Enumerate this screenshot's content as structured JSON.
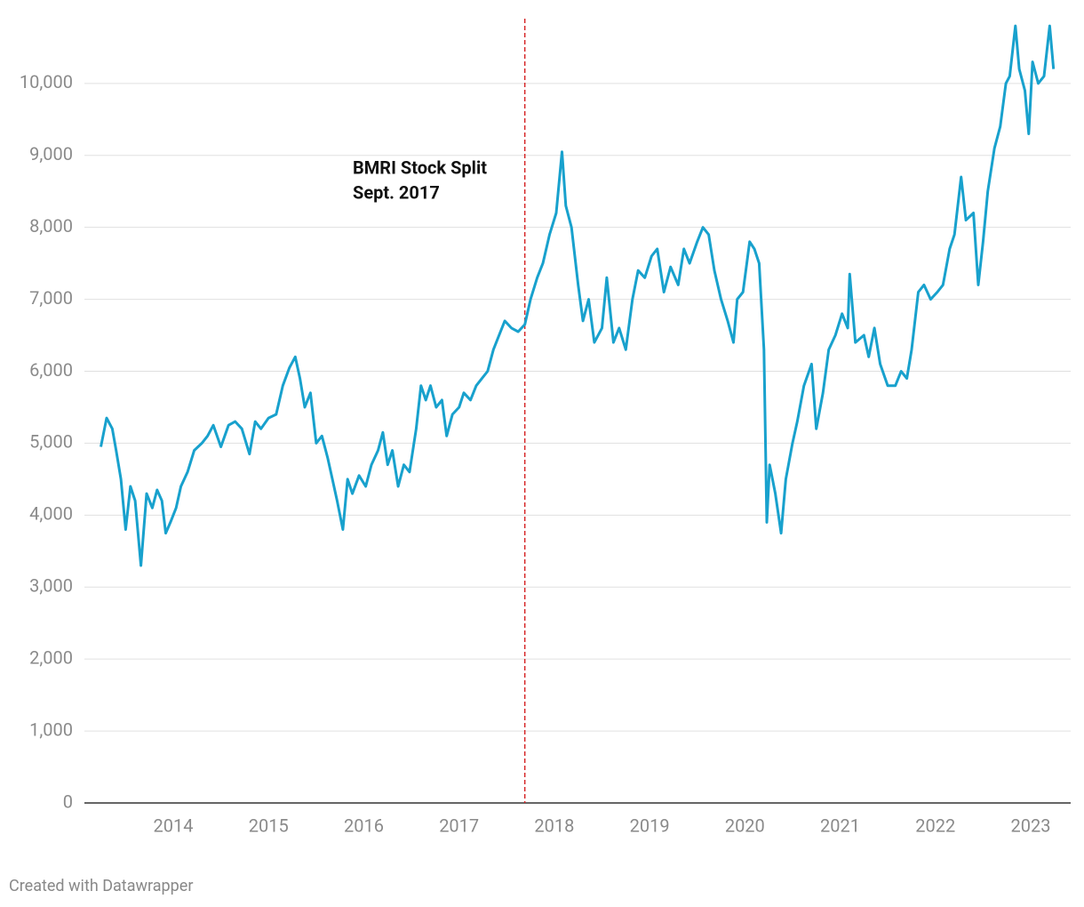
{
  "chart_data": {
    "type": "line",
    "x": [
      2013.24,
      2013.3,
      2013.36,
      2013.4,
      2013.45,
      2013.5,
      2013.55,
      2013.6,
      2013.66,
      2013.72,
      2013.78,
      2013.83,
      2013.88,
      2013.92,
      2013.97,
      2014.03,
      2014.08,
      2014.15,
      2014.22,
      2014.3,
      2014.36,
      2014.42,
      2014.5,
      2014.58,
      2014.65,
      2014.72,
      2014.8,
      2014.86,
      2014.92,
      2015.0,
      2015.08,
      2015.15,
      2015.22,
      2015.28,
      2015.33,
      2015.38,
      2015.44,
      2015.5,
      2015.56,
      2015.62,
      2015.67,
      2015.72,
      2015.78,
      2015.83,
      2015.88,
      2015.95,
      2016.02,
      2016.08,
      2016.15,
      2016.2,
      2016.25,
      2016.3,
      2016.36,
      2016.42,
      2016.48,
      2016.55,
      2016.6,
      2016.65,
      2016.7,
      2016.76,
      2016.82,
      2016.87,
      2016.93,
      2017.0,
      2017.05,
      2017.12,
      2017.18,
      2017.24,
      2017.3,
      2017.36,
      2017.42,
      2017.48,
      2017.55,
      2017.62,
      2017.69,
      2017.75,
      2017.82,
      2017.88,
      2017.95,
      2018.02,
      2018.08,
      2018.12,
      2018.18,
      2018.25,
      2018.3,
      2018.36,
      2018.42,
      2018.5,
      2018.55,
      2018.62,
      2018.68,
      2018.75,
      2018.82,
      2018.88,
      2018.95,
      2019.02,
      2019.08,
      2019.15,
      2019.22,
      2019.3,
      2019.36,
      2019.42,
      2019.5,
      2019.56,
      2019.62,
      2019.68,
      2019.75,
      2019.82,
      2019.88,
      2019.92,
      2019.98,
      2020.05,
      2020.1,
      2020.15,
      2020.2,
      2020.23,
      2020.26,
      2020.32,
      2020.38,
      2020.43,
      2020.5,
      2020.55,
      2020.62,
      2020.7,
      2020.75,
      2020.82,
      2020.88,
      2020.95,
      2021.02,
      2021.08,
      2021.1,
      2021.16,
      2021.25,
      2021.3,
      2021.36,
      2021.42,
      2021.5,
      2021.58,
      2021.64,
      2021.7,
      2021.75,
      2021.82,
      2021.88,
      2021.95,
      2022.02,
      2022.08,
      2022.15,
      2022.2,
      2022.27,
      2022.32,
      2022.4,
      2022.45,
      2022.5,
      2022.55,
      2022.62,
      2022.68,
      2022.74,
      2022.78,
      2022.84,
      2022.88,
      2022.94,
      2022.98,
      2023.02,
      2023.08,
      2023.14,
      2023.2,
      2023.24
    ],
    "series": [
      {
        "color": "#18a1cd",
        "values": [
          4950,
          5350,
          5200,
          4900,
          4500,
          3800,
          4400,
          4200,
          3300,
          4300,
          4100,
          4350,
          4200,
          3750,
          3900,
          4100,
          4400,
          4600,
          4900,
          5000,
          5100,
          5250,
          4950,
          5250,
          5300,
          5200,
          4850,
          5300,
          5200,
          5350,
          5400,
          5800,
          6050,
          6200,
          5900,
          5500,
          5700,
          5000,
          5100,
          4800,
          4500,
          4200,
          3800,
          4500,
          4300,
          4550,
          4400,
          4700,
          4900,
          5150,
          4700,
          4900,
          4400,
          4700,
          4600,
          5200,
          5800,
          5600,
          5800,
          5500,
          5600,
          5100,
          5400,
          5500,
          5700,
          5600,
          5800,
          5900,
          6000,
          6300,
          6500,
          6700,
          6600,
          6550,
          6650,
          7000,
          7300,
          7500,
          7900,
          8200,
          9050,
          8300,
          8000,
          7200,
          6700,
          7000,
          6400,
          6600,
          7300,
          6400,
          6600,
          6300,
          7000,
          7400,
          7300,
          7600,
          7700,
          7100,
          7450,
          7200,
          7700,
          7500,
          7800,
          8000,
          7900,
          7400,
          7000,
          6700,
          6400,
          7000,
          7100,
          7800,
          7700,
          7500,
          6300,
          3900,
          4700,
          4300,
          3750,
          4500,
          5000,
          5300,
          5800,
          6100,
          5200,
          5700,
          6300,
          6500,
          6800,
          6600,
          7350,
          6400,
          6500,
          6200,
          6600,
          6100,
          5800,
          5800,
          6000,
          5900,
          6300,
          7100,
          7200,
          7000,
          7100,
          7200,
          7700,
          7900,
          8700,
          8100,
          8200,
          7200,
          7800,
          8500,
          9100,
          9400,
          10000,
          10100,
          10800,
          10200,
          9900,
          9300,
          10300,
          10000,
          10100,
          10800,
          10200
        ]
      }
    ],
    "xlim": [
      2013.067,
      2023.42
    ],
    "xticks": [
      2014,
      2015,
      2016,
      2017,
      2018,
      2019,
      2020,
      2021,
      2022,
      2023
    ],
    "ylim": [
      0,
      10900
    ],
    "yticks": [
      0,
      {
        "value": 1000,
        "label": "1,000"
      },
      {
        "value": 2000,
        "label": "2,000"
      },
      {
        "value": 3000,
        "label": "3,000"
      },
      {
        "value": 4000,
        "label": "4,000"
      },
      {
        "value": 5000,
        "label": "5,000"
      },
      {
        "value": 6000,
        "label": "6,000"
      },
      {
        "value": 7000,
        "label": "7,000"
      },
      {
        "value": 8000,
        "label": "8,000"
      },
      {
        "value": 9000,
        "label": "9,000"
      },
      {
        "value": 10000,
        "label": "10,000"
      }
    ],
    "grid": true,
    "annotation": {
      "x": 2017.69,
      "color": "#d62728",
      "lines": [
        "BMRI Stock Split",
        "Sept. 2017"
      ]
    },
    "credit": "Created with Datawrapper"
  }
}
